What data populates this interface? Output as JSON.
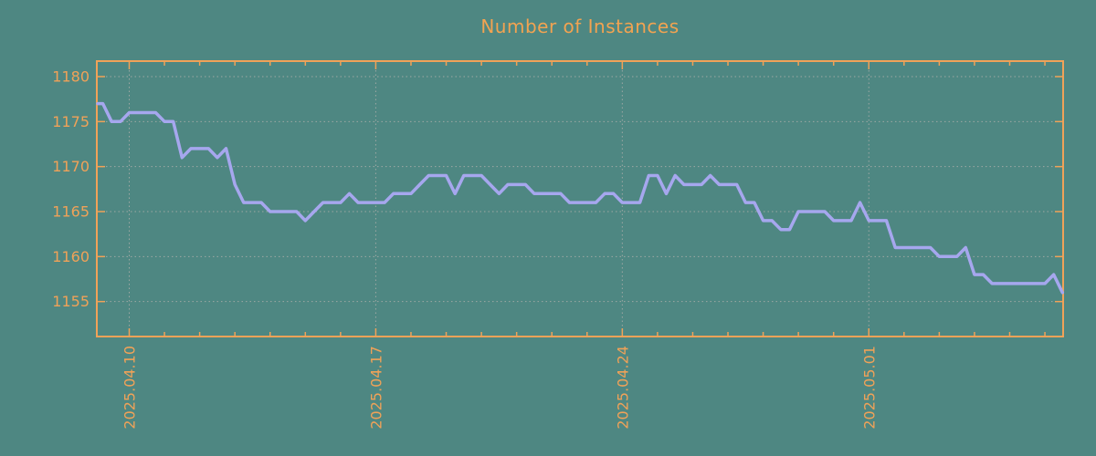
{
  "chart_data": {
    "type": "line",
    "title": "Number of Instances",
    "background_color": "#4e8782",
    "axis_color": "#f0a258",
    "grid_color": "#9ea8a4",
    "line_color": "#a6a7ee",
    "label_color": "#f0a258",
    "x_axis": {
      "tick_labels": [
        "2025.04.10",
        "2025.04.17",
        "2025.04.24",
        "2025.05.01"
      ],
      "tick_label_day_offsets": [
        0,
        7,
        14,
        21
      ],
      "minor_tick_every_days": 1,
      "minor_tick_day_range": [
        0,
        26
      ],
      "range_days": [
        -0.92,
        26.52
      ],
      "grid": true
    },
    "y_axis": {
      "ticks": [
        1155,
        1160,
        1165,
        1170,
        1175,
        1180
      ],
      "range": [
        1151.1,
        1181.7
      ],
      "grid": true
    },
    "legend": "none",
    "series": [
      {
        "name": "Number of Instances",
        "start": "2025-04-09 00:00",
        "interval_hours": 6,
        "values": [
          1177,
          1177,
          1175,
          1175,
          1176,
          1176,
          1176,
          1176,
          1175,
          1175,
          1171,
          1172,
          1172,
          1172,
          1171,
          1172,
          1168,
          1166,
          1166,
          1166,
          1165,
          1165,
          1165,
          1165,
          1164,
          1165,
          1166,
          1166,
          1166,
          1167,
          1166,
          1166,
          1166,
          1166,
          1167,
          1167,
          1167,
          1168,
          1169,
          1169,
          1169,
          1167,
          1169,
          1169,
          1169,
          1168,
          1167,
          1168,
          1168,
          1168,
          1167,
          1167,
          1167,
          1167,
          1166,
          1166,
          1166,
          1166,
          1167,
          1167,
          1166,
          1166,
          1166,
          1169,
          1169,
          1167,
          1169,
          1168,
          1168,
          1168,
          1169,
          1168,
          1168,
          1168,
          1166,
          1166,
          1164,
          1164,
          1163,
          1163,
          1165,
          1165,
          1165,
          1165,
          1164,
          1164,
          1164,
          1166,
          1164,
          1164,
          1164,
          1161,
          1161,
          1161,
          1161,
          1161,
          1160,
          1160,
          1160,
          1161,
          1158,
          1158,
          1157,
          1157,
          1157,
          1157,
          1157,
          1157,
          1157,
          1158,
          1156
        ]
      }
    ]
  }
}
